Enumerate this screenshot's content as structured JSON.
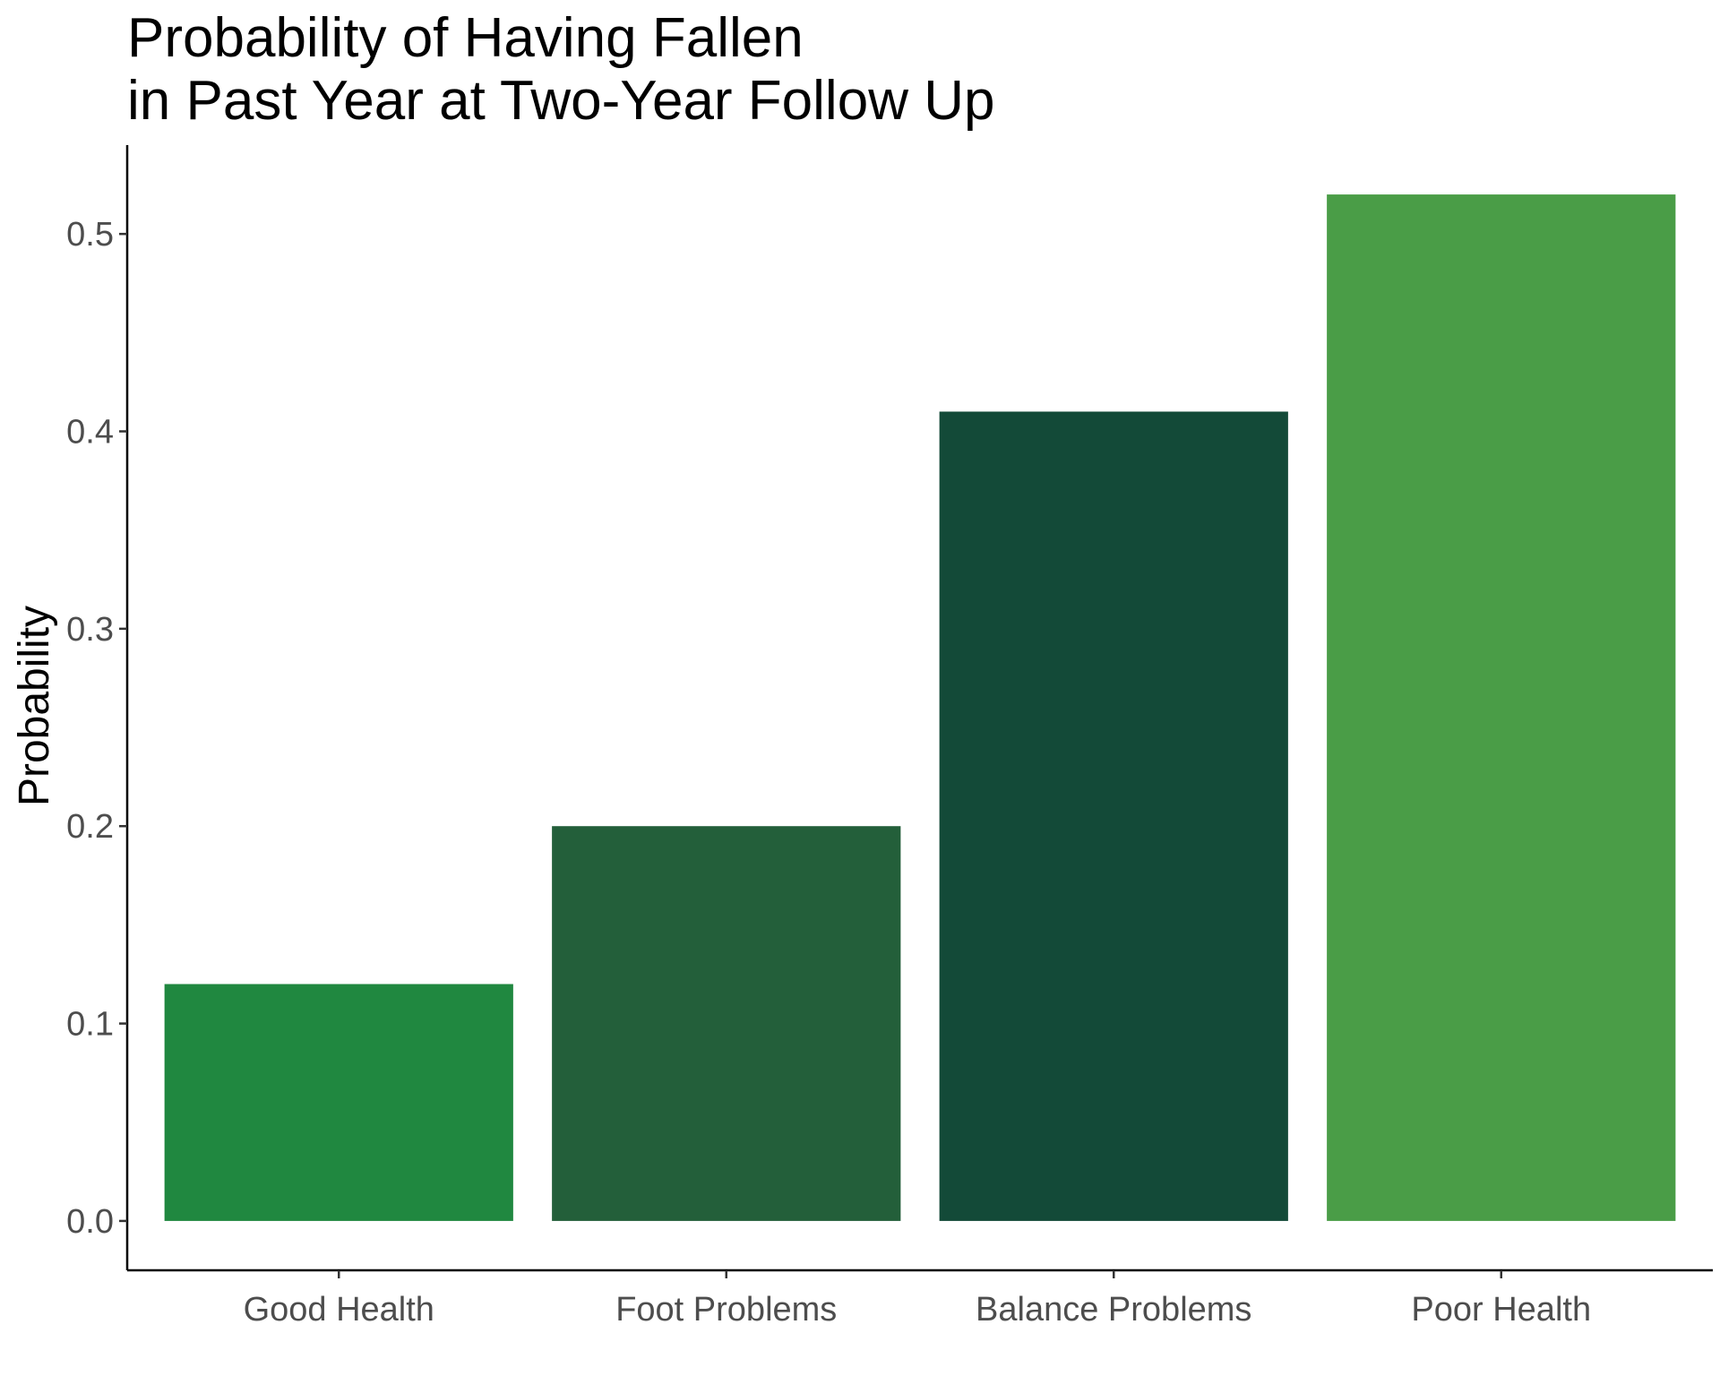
{
  "chart_data": {
    "type": "bar",
    "title_lines": [
      "Probability of Having Fallen",
      "in Past Year at Two-Year Follow Up"
    ],
    "xlabel": "",
    "ylabel": "Probability",
    "categories": [
      "Good Health",
      "Foot Problems",
      "Balance Problems",
      "Poor Health"
    ],
    "values": [
      0.12,
      0.2,
      0.41,
      0.52
    ],
    "bar_colors": [
      "#208840",
      "#235f3a",
      "#134a38",
      "#4a9d47"
    ],
    "ylim": [
      -0.025,
      0.545
    ],
    "yticks": [
      0.0,
      0.1,
      0.2,
      0.3,
      0.4,
      0.5
    ],
    "ytick_labels": [
      "0.0",
      "0.1",
      "0.2",
      "0.3",
      "0.4",
      "0.5"
    ],
    "grid": false,
    "legend": "none"
  }
}
